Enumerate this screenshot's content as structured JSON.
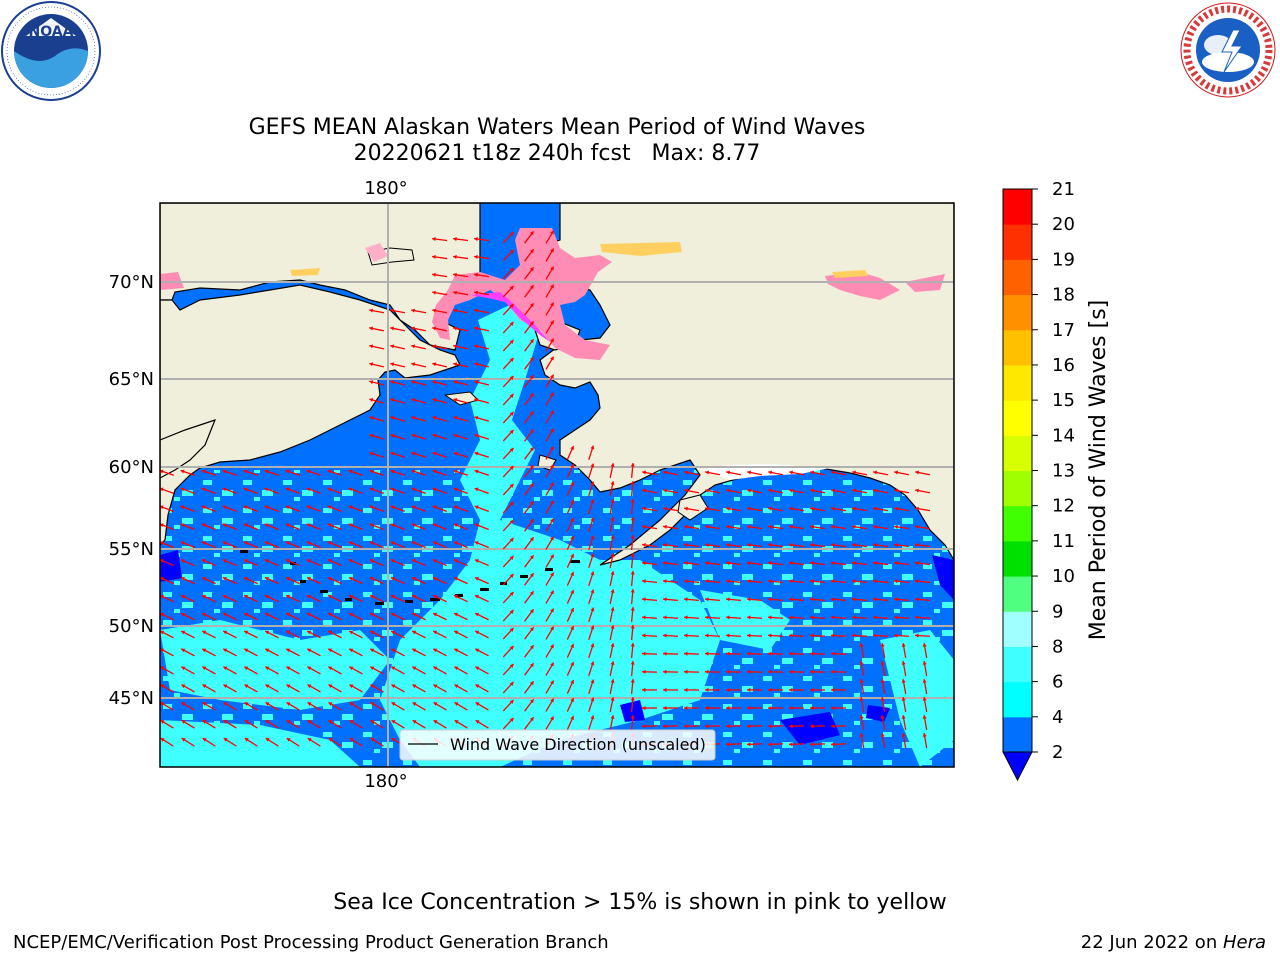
{
  "header": {
    "title_line1": "GEFS MEAN Alaskan Waters Mean Period of Wind Waves",
    "title_line2": "20220621 t18z 240h fcst   Max: 8.77"
  },
  "logos": {
    "left": {
      "name": "NOAA",
      "ring_text": "NATIONAL OCEANIC AND ATMOSPHERIC ADMINISTRATION · U.S. DEPARTMENT OF COMMERCE"
    },
    "right": {
      "name": "NATIONAL WEATHER SERVICE"
    }
  },
  "map": {
    "lon_labels": [
      "180°",
      "180°"
    ],
    "lat_labels": [
      "70°N",
      "65°N",
      "60°N",
      "55°N",
      "50°N",
      "45°N"
    ],
    "land_color": "#efefdc",
    "legend_label": "Wind Wave Direction (unscaled)",
    "arrow_color": "#ff0000"
  },
  "colorbar": {
    "label": "Mean Period of Wind Waves [s]",
    "ticks": [
      "2",
      "4",
      "6",
      "8",
      "9",
      "10",
      "11",
      "12",
      "13",
      "14",
      "15",
      "16",
      "17",
      "18",
      "19",
      "20",
      "21"
    ],
    "colors": [
      "#0070ff",
      "#00ffff",
      "#40ffff",
      "#a0ffff",
      "#50ff80",
      "#00e000",
      "#40ff00",
      "#a0ff00",
      "#d8ff00",
      "#ffff00",
      "#ffe800",
      "#ffc000",
      "#ff9000",
      "#ff6000",
      "#ff3000",
      "#ff0000"
    ],
    "under_color": "#0000ff"
  },
  "caption": "Sea Ice Concentration > 15% is shown in pink to yellow",
  "footer": {
    "left": "NCEP/EMC/Verification Post Processing Product Generation Branch",
    "right_date": "22 Jun 2022 on ",
    "right_host": "Hera"
  }
}
